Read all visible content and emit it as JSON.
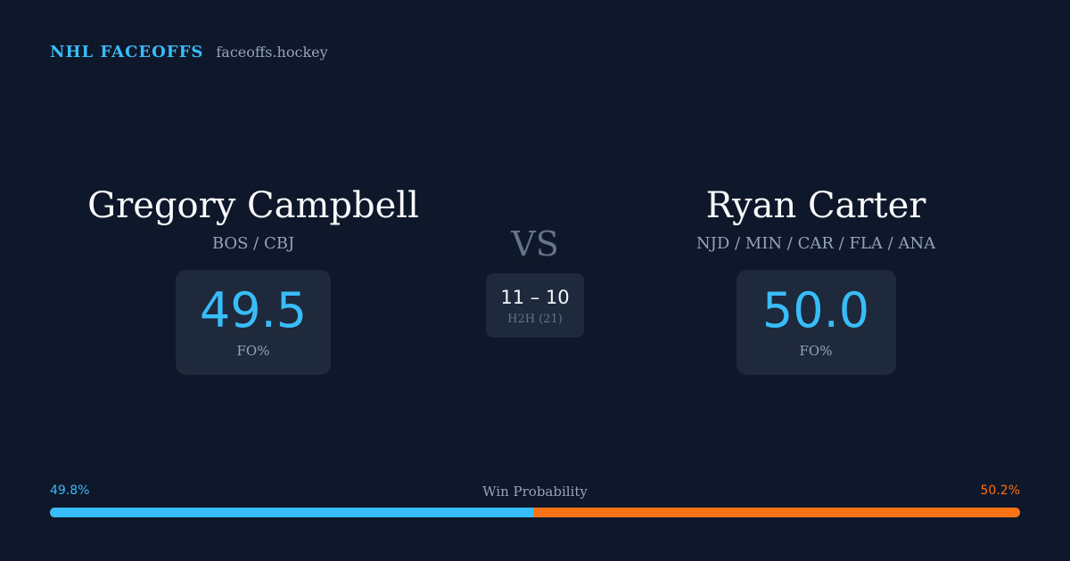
{
  "brand": {
    "name": "NHL FACEOFFS",
    "site": "faceoffs.hockey"
  },
  "player_left": {
    "name": "Gregory Campbell",
    "teams": "BOS / CBJ",
    "fo_pct": "49.5",
    "fo_label": "FO%"
  },
  "player_right": {
    "name": "Ryan Carter",
    "teams": "NJD / MIN / CAR / FLA / ANA",
    "fo_pct": "50.0",
    "fo_label": "FO%"
  },
  "versus": "VS",
  "head_to_head": {
    "score": "11 – 10",
    "label": "H2H (21)"
  },
  "win_probability": {
    "title": "Win Probability",
    "left_label": "49.8%",
    "right_label": "50.2%",
    "left_value": 49.8,
    "right_value": 50.2
  },
  "colors": {
    "background": "#0f172a",
    "card": "#1e293b",
    "left_accent": "#38bdf8",
    "right_accent": "#f97316",
    "muted_text": "#94a3b8"
  }
}
